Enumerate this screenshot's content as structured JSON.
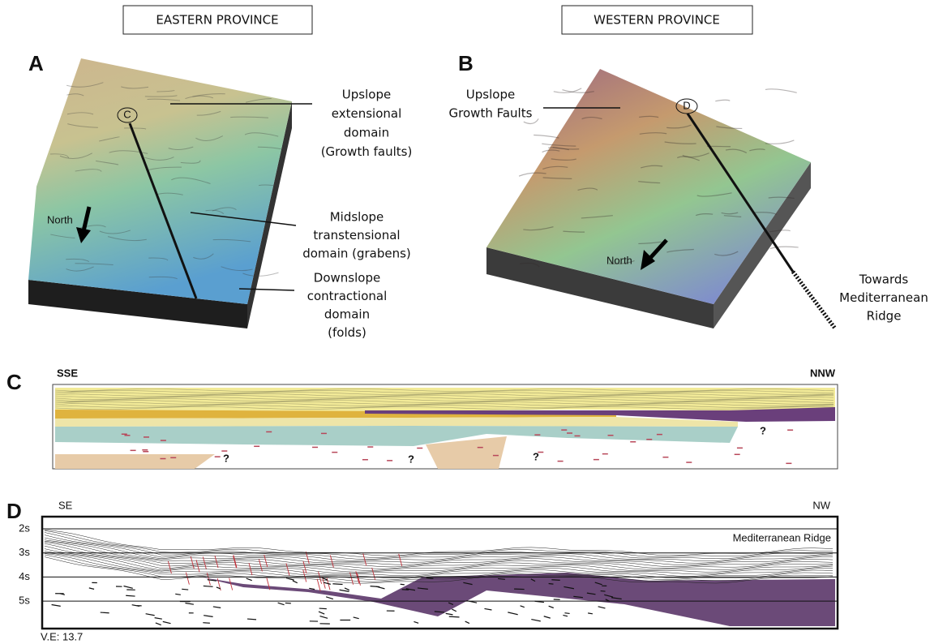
{
  "panels": {
    "eastern": {
      "header": "EASTERN PROVINCE",
      "label": "A",
      "profile_marker": "C",
      "north": "North",
      "annotations": [
        [
          "Upslope",
          "extensional",
          "domain",
          "(Growth faults)"
        ],
        [
          "Midslope",
          "transtensional",
          "domain (grabens)"
        ],
        [
          "Downslope",
          "contractional",
          "domain",
          "(folds)"
        ]
      ]
    },
    "western": {
      "header": "WESTERN PROVINCE",
      "label": "B",
      "profile_marker": "D",
      "north": "North",
      "annotations": [
        [
          "Upslope",
          "Growth Faults"
        ],
        [
          "Towards",
          "Mediterranean",
          "Ridge"
        ]
      ]
    },
    "section_c": {
      "label": "C",
      "left": "SSE",
      "right": "NNW",
      "unknowns": [
        "?",
        "?",
        "?",
        "?"
      ]
    },
    "section_d": {
      "label": "D",
      "left": "SE",
      "right": "NW",
      "time_ticks": [
        "2s",
        "3s",
        "4s",
        "5s"
      ],
      "annotation": "Mediterranean Ridge",
      "note": "V.E: 13.7"
    }
  }
}
